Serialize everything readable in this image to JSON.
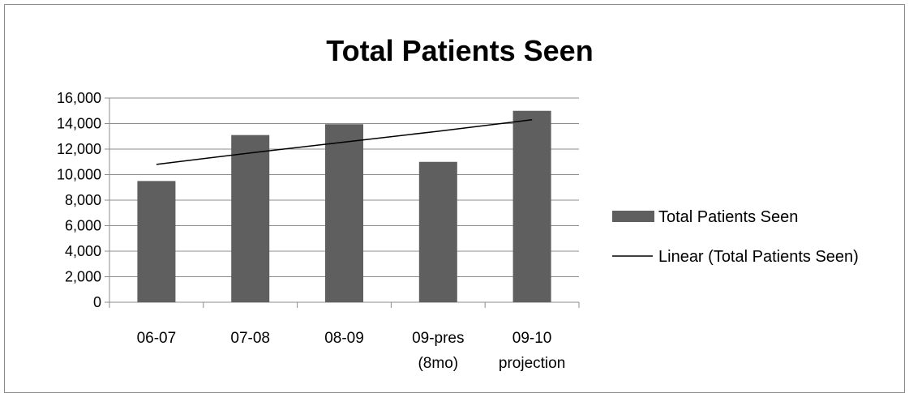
{
  "chart_data": {
    "type": "bar",
    "title": "Total Patients Seen",
    "categories": [
      "06-07",
      "07-08",
      "08-09",
      "09-pres\n(8mo)",
      "09-10\nprojection"
    ],
    "series": [
      {
        "name": "Total Patients Seen",
        "type": "bar",
        "values": [
          9500,
          13100,
          13950,
          11000,
          15000
        ],
        "color": "#5f5f5f"
      },
      {
        "name": "Linear (Total Patients Seen)",
        "type": "trendline",
        "values": [
          10800,
          11700,
          12550,
          13400,
          14300
        ],
        "color": "#000000"
      }
    ],
    "ylim": [
      0,
      16000
    ],
    "yticks": [
      0,
      2000,
      4000,
      6000,
      8000,
      10000,
      12000,
      14000,
      16000
    ],
    "ytick_labels": [
      "0",
      "2,000",
      "4,000",
      "6,000",
      "8,000",
      "10,000",
      "12,000",
      "14,000",
      "16,000"
    ],
    "grid": true,
    "legend": "right"
  }
}
